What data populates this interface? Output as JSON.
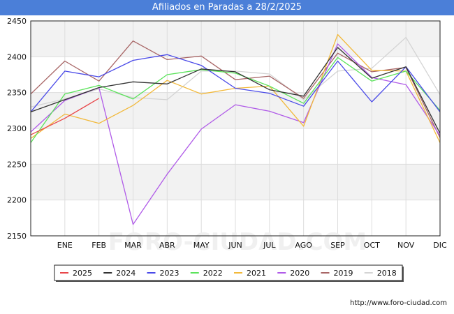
{
  "chart_data": {
    "type": "line",
    "title": "Afiliados en Paradas a 28/2/2025",
    "categories": [
      "",
      "ENE",
      "FEB",
      "MAR",
      "ABR",
      "MAY",
      "JUN",
      "JUL",
      "AGO",
      "SEP",
      "OCT",
      "NOV",
      "DIC"
    ],
    "ylim": [
      2150,
      2450
    ],
    "yticks": [
      2150,
      2200,
      2250,
      2300,
      2350,
      2400,
      2450
    ],
    "grid": true,
    "legend_position": "bottom",
    "series": [
      {
        "name": "2025",
        "color": "#e8474a",
        "values": [
          2291,
          2314,
          2342,
          null,
          null,
          null,
          null,
          null,
          null,
          null,
          null,
          null,
          null
        ]
      },
      {
        "name": "2024",
        "color": "#333333",
        "values": [
          2323,
          2340,
          2357,
          2365,
          2362,
          2383,
          2379,
          2354,
          2345,
          2413,
          2370,
          2386,
          2293
        ]
      },
      {
        "name": "2023",
        "color": "#4a4ae8",
        "values": [
          2323,
          2380,
          2372,
          2395,
          2403,
          2388,
          2356,
          2349,
          2331,
          2394,
          2337,
          2386,
          2323
        ]
      },
      {
        "name": "2022",
        "color": "#5be35b",
        "values": [
          2280,
          2348,
          2360,
          2341,
          2375,
          2382,
          2377,
          2359,
          2335,
          2399,
          2366,
          2380,
          2325
        ]
      },
      {
        "name": "2021",
        "color": "#f2b93b",
        "values": [
          2286,
          2320,
          2307,
          2332,
          2367,
          2348,
          2356,
          2359,
          2303,
          2431,
          2381,
          2380,
          2280
        ]
      },
      {
        "name": "2020",
        "color": "#b05be8",
        "values": [
          2295,
          2339,
          2357,
          2166,
          2236,
          2299,
          2333,
          2324,
          2308,
          2418,
          2371,
          2361,
          2290
        ]
      },
      {
        "name": "2019",
        "color": "#a86666",
        "values": [
          2348,
          2394,
          2366,
          2422,
          2396,
          2401,
          2368,
          2373,
          2342,
          2405,
          2379,
          2385,
          2287
        ]
      },
      {
        "name": "2018",
        "color": "#d4d4d4",
        "values": [
          2330,
          2341,
          2355,
          2343,
          2340,
          2380,
          2380,
          2376,
          2340,
          2380,
          2384,
          2427,
          2347
        ]
      }
    ]
  },
  "footer": {
    "url": "http://www.foro-ciudad.com"
  },
  "watermark": "FORO-CIUDAD.COM"
}
